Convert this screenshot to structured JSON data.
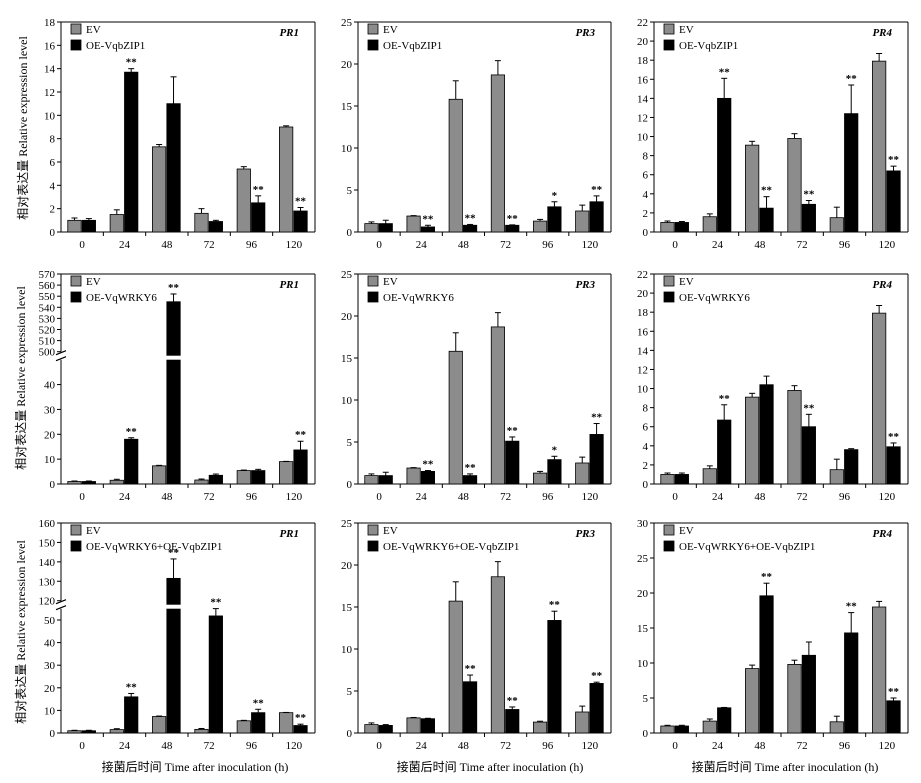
{
  "ylabel": "相对表达量 Relative expression level",
  "xlabel": "接菌后时间 Time after inoculation (h)",
  "chart_data": [
    {
      "type": "bar",
      "gene": "PR1",
      "categories": [
        "0",
        "24",
        "48",
        "72",
        "96",
        "120"
      ],
      "ylim": [
        0,
        18
      ],
      "yticks": [
        0,
        2,
        4,
        6,
        8,
        10,
        12,
        14,
        16,
        18
      ],
      "series": [
        {
          "name": "EV",
          "color": "#8c8c8c",
          "values": [
            1.0,
            1.5,
            7.3,
            1.6,
            5.4,
            9.0
          ],
          "err": [
            0.2,
            0.4,
            0.2,
            0.4,
            0.2,
            0.1
          ],
          "sig": [
            "",
            "",
            "",
            "",
            "",
            ""
          ]
        },
        {
          "name": "OE-VqbZIP1",
          "color": "#000000",
          "values": [
            1.0,
            13.7,
            11.0,
            0.9,
            2.5,
            1.8
          ],
          "err": [
            0.15,
            0.3,
            2.3,
            0.1,
            0.6,
            0.3
          ],
          "sig": [
            "",
            "**",
            "",
            "",
            "**",
            "**"
          ]
        }
      ]
    },
    {
      "type": "bar",
      "gene": "PR3",
      "categories": [
        "0",
        "24",
        "48",
        "72",
        "96",
        "120"
      ],
      "ylim": [
        0,
        25
      ],
      "yticks": [
        0,
        5,
        10,
        15,
        20,
        25
      ],
      "series": [
        {
          "name": "EV",
          "color": "#8c8c8c",
          "values": [
            1.0,
            1.9,
            15.8,
            18.7,
            1.3,
            2.5
          ],
          "err": [
            0.2,
            0.05,
            2.2,
            1.7,
            0.2,
            0.7
          ],
          "sig": [
            "",
            "",
            "",
            "",
            "",
            ""
          ]
        },
        {
          "name": "OE-VqbZIP1",
          "color": "#000000",
          "values": [
            1.0,
            0.6,
            0.8,
            0.8,
            3.0,
            3.6
          ],
          "err": [
            0.4,
            0.2,
            0.1,
            0.05,
            0.6,
            0.7
          ],
          "sig": [
            "",
            "**",
            "**",
            "**",
            "*",
            "**"
          ]
        }
      ]
    },
    {
      "type": "bar",
      "gene": "PR4",
      "categories": [
        "0",
        "24",
        "48",
        "72",
        "96",
        "120"
      ],
      "ylim": [
        0,
        22
      ],
      "yticks": [
        0,
        2,
        4,
        6,
        8,
        10,
        12,
        14,
        16,
        18,
        20,
        22
      ],
      "series": [
        {
          "name": "EV",
          "color": "#8c8c8c",
          "values": [
            1.0,
            1.6,
            9.1,
            9.8,
            1.5,
            17.9
          ],
          "err": [
            0.15,
            0.3,
            0.4,
            0.5,
            1.1,
            0.8
          ],
          "sig": [
            "",
            "",
            "",
            "",
            "",
            ""
          ]
        },
        {
          "name": "OE-VqbZIP1",
          "color": "#000000",
          "values": [
            1.0,
            14.0,
            2.5,
            2.9,
            12.4,
            6.4
          ],
          "err": [
            0.1,
            2.1,
            1.2,
            0.4,
            3.0,
            0.5
          ],
          "sig": [
            "",
            "**",
            "**",
            "**",
            "**",
            "**"
          ]
        }
      ]
    },
    {
      "type": "bar",
      "gene": "PR1",
      "categories": [
        "0",
        "24",
        "48",
        "72",
        "96",
        "120"
      ],
      "ylim": [
        0,
        570
      ],
      "broken_axis": [
        50,
        500
      ],
      "yticks_lower": [
        0,
        10,
        20,
        30,
        40
      ],
      "yticks_upper": [
        500,
        510,
        520,
        530,
        540,
        550,
        560,
        570
      ],
      "series": [
        {
          "name": "EV",
          "color": "#8c8c8c",
          "values": [
            1.0,
            1.5,
            7.3,
            1.6,
            5.4,
            9.0
          ],
          "err": [
            0.2,
            0.4,
            0.2,
            0.4,
            0.2,
            0.1
          ],
          "sig": [
            "",
            "",
            "",
            "",
            "",
            ""
          ]
        },
        {
          "name": "OE-VqWRKY6",
          "color": "#000000",
          "values": [
            1.0,
            18.0,
            545,
            3.5,
            5.4,
            13.7
          ],
          "err": [
            0.2,
            0.6,
            7,
            0.5,
            0.5,
            3.5
          ],
          "sig": [
            "",
            "**",
            "**",
            "",
            "",
            "**"
          ]
        }
      ]
    },
    {
      "type": "bar",
      "gene": "PR3",
      "categories": [
        "0",
        "24",
        "48",
        "72",
        "96",
        "120"
      ],
      "ylim": [
        0,
        25
      ],
      "yticks": [
        0,
        5,
        10,
        15,
        20,
        25
      ],
      "series": [
        {
          "name": "EV",
          "color": "#8c8c8c",
          "values": [
            1.0,
            1.9,
            15.8,
            18.7,
            1.3,
            2.5
          ],
          "err": [
            0.2,
            0.05,
            2.2,
            1.7,
            0.2,
            0.7
          ],
          "sig": [
            "",
            "",
            "",
            "",
            "",
            ""
          ]
        },
        {
          "name": "OE-VqWRKY6",
          "color": "#000000",
          "values": [
            1.0,
            1.5,
            1.0,
            5.1,
            2.9,
            5.9
          ],
          "err": [
            0.4,
            0.1,
            0.2,
            0.5,
            0.4,
            1.3
          ],
          "sig": [
            "",
            "**",
            "**",
            "**",
            "*",
            "**"
          ]
        }
      ]
    },
    {
      "type": "bar",
      "gene": "PR4",
      "categories": [
        "0",
        "24",
        "48",
        "72",
        "96",
        "120"
      ],
      "ylim": [
        0,
        22
      ],
      "yticks": [
        0,
        2,
        4,
        6,
        8,
        10,
        12,
        14,
        16,
        18,
        20,
        22
      ],
      "series": [
        {
          "name": "EV",
          "color": "#8c8c8c",
          "values": [
            1.0,
            1.6,
            9.1,
            9.8,
            1.5,
            17.9
          ],
          "err": [
            0.15,
            0.3,
            0.4,
            0.5,
            1.1,
            0.8
          ],
          "sig": [
            "",
            "",
            "",
            "",
            "",
            ""
          ]
        },
        {
          "name": "OE-VqWRKY6",
          "color": "#000000",
          "values": [
            1.0,
            6.7,
            10.4,
            6.0,
            3.6,
            3.9
          ],
          "err": [
            0.15,
            1.6,
            0.9,
            1.3,
            0.1,
            0.4
          ],
          "sig": [
            "",
            "**",
            "",
            "**",
            "",
            "**"
          ]
        }
      ]
    },
    {
      "type": "bar",
      "gene": "PR1",
      "categories": [
        "0",
        "24",
        "48",
        "72",
        "96",
        "120"
      ],
      "ylim": [
        0,
        160
      ],
      "broken_axis": [
        55,
        120
      ],
      "yticks_lower": [
        0,
        10,
        20,
        30,
        40,
        50
      ],
      "yticks_upper": [
        120,
        130,
        140,
        150,
        160
      ],
      "series": [
        {
          "name": "EV",
          "color": "#8c8c8c",
          "values": [
            1.0,
            1.5,
            7.3,
            1.6,
            5.4,
            9.0
          ],
          "err": [
            0.2,
            0.4,
            0.2,
            0.4,
            0.2,
            0.1
          ],
          "sig": [
            "",
            "",
            "",
            "",
            "",
            ""
          ]
        },
        {
          "name": "OE-VqWRKY6+OE-VqbZIP1",
          "color": "#000000",
          "values": [
            1.0,
            16.0,
            131.5,
            51.8,
            9.0,
            3.3
          ],
          "err": [
            0.2,
            1.5,
            10,
            4,
            1.5,
            0.6
          ],
          "sig": [
            "",
            "**",
            "**",
            "**",
            "**",
            "**"
          ]
        }
      ]
    },
    {
      "type": "bar",
      "gene": "PR3",
      "categories": [
        "0",
        "24",
        "48",
        "72",
        "96",
        "120"
      ],
      "ylim": [
        0,
        25
      ],
      "yticks": [
        0,
        5,
        10,
        15,
        20,
        25
      ],
      "series": [
        {
          "name": "EV",
          "color": "#8c8c8c",
          "values": [
            1.0,
            1.8,
            15.7,
            18.6,
            1.3,
            2.5
          ],
          "err": [
            0.2,
            0.05,
            2.3,
            1.8,
            0.1,
            0.7
          ],
          "sig": [
            "",
            "",
            "",
            "",
            "",
            ""
          ]
        },
        {
          "name": "OE-VqWRKY6+OE-VqbZIP1",
          "color": "#000000",
          "values": [
            0.9,
            1.7,
            6.1,
            2.8,
            13.4,
            5.9
          ],
          "err": [
            0.1,
            0.05,
            0.8,
            0.3,
            1.1,
            0.15
          ],
          "sig": [
            "",
            "",
            "**",
            "**",
            "**",
            "**"
          ]
        }
      ]
    },
    {
      "type": "bar",
      "gene": "PR4",
      "categories": [
        "0",
        "24",
        "48",
        "72",
        "96",
        "120"
      ],
      "ylim": [
        0,
        30
      ],
      "yticks": [
        0,
        5,
        10,
        15,
        20,
        25,
        30
      ],
      "series": [
        {
          "name": "EV",
          "color": "#8c8c8c",
          "values": [
            1.0,
            1.7,
            9.2,
            9.8,
            1.6,
            18.0
          ],
          "err": [
            0.1,
            0.3,
            0.5,
            0.6,
            0.8,
            0.8
          ],
          "sig": [
            "",
            "",
            "",
            "",
            "",
            ""
          ]
        },
        {
          "name": "OE-VqWRKY6+OE-VqbZIP1",
          "color": "#000000",
          "values": [
            1.0,
            3.6,
            19.6,
            11.1,
            14.3,
            4.6
          ],
          "err": [
            0.1,
            0.05,
            1.8,
            1.9,
            2.9,
            0.4
          ],
          "sig": [
            "",
            "",
            "**",
            "",
            "**",
            "**"
          ]
        }
      ]
    }
  ]
}
